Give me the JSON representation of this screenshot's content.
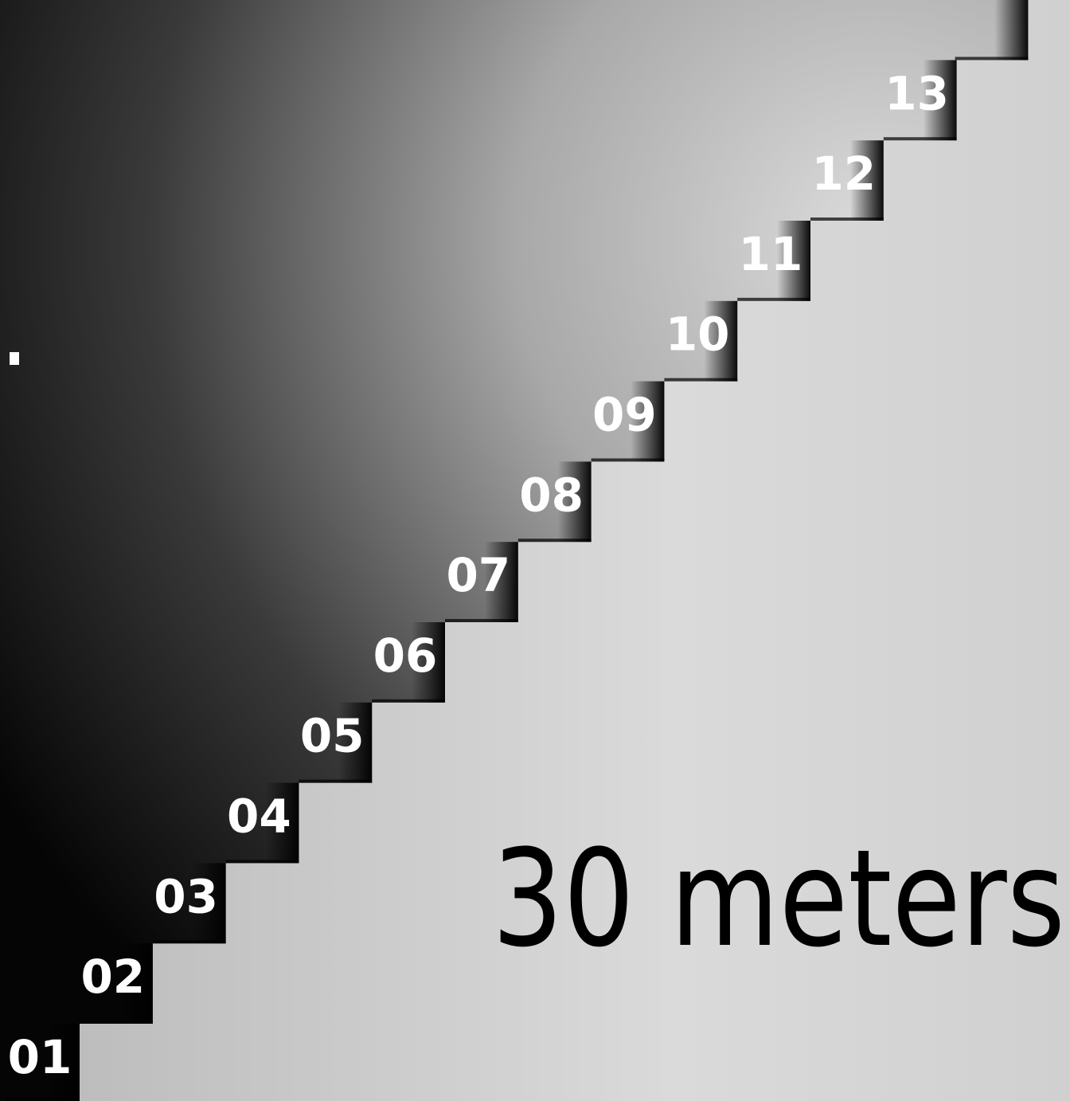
{
  "steps": [
    "01",
    "02",
    "03",
    "04",
    "05",
    "06",
    "07",
    "08",
    "09",
    "10",
    "11",
    "12",
    "13"
  ],
  "caption": "30 meters"
}
